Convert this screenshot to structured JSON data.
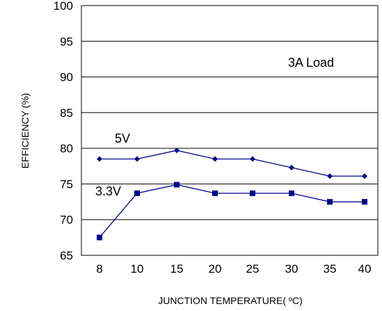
{
  "chart_data": {
    "type": "line",
    "categories": [
      "8",
      "10",
      "15",
      "20",
      "25",
      "30",
      "35",
      "40"
    ],
    "series": [
      {
        "name": "5V",
        "marker": "diamond",
        "color": "#00008B",
        "values": [
          78.5,
          78.5,
          79.7,
          78.5,
          78.5,
          77.3,
          76.1,
          76.1
        ]
      },
      {
        "name": "3.3V",
        "marker": "square",
        "color": "#00008B",
        "values": [
          67.5,
          73.7,
          74.9,
          73.7,
          73.7,
          73.7,
          72.5,
          72.5
        ]
      }
    ],
    "title": "",
    "annotation": "3A Load",
    "xlabel": "JUNCTION TEMPERATURE( ºC)",
    "ylabel": "EFFICIENCY (%)",
    "ylim": [
      65,
      100
    ],
    "yticks": [
      "65",
      "70",
      "75",
      "80",
      "85",
      "90",
      "95",
      "100"
    ],
    "grid": "horizontal",
    "legend": "none"
  }
}
